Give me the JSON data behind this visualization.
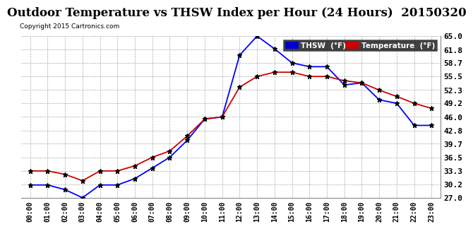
{
  "title": "Outdoor Temperature vs THSW Index per Hour (24 Hours)  20150320",
  "copyright": "Copyright 2015 Cartronics.com",
  "hours": [
    "00:00",
    "01:00",
    "02:00",
    "03:00",
    "04:00",
    "05:00",
    "06:00",
    "07:00",
    "08:00",
    "09:00",
    "10:00",
    "11:00",
    "12:00",
    "13:00",
    "14:00",
    "15:00",
    "16:00",
    "17:00",
    "18:00",
    "19:00",
    "20:00",
    "21:00",
    "22:00",
    "23:00"
  ],
  "thsw": [
    30.0,
    30.0,
    28.9,
    27.0,
    30.0,
    30.0,
    31.5,
    34.0,
    36.5,
    40.5,
    45.5,
    46.0,
    60.5,
    65.0,
    62.0,
    58.7,
    57.8,
    57.8,
    53.5,
    54.0,
    50.0,
    49.2,
    44.0,
    44.0
  ],
  "temperature": [
    33.3,
    33.3,
    32.5,
    31.0,
    33.3,
    33.3,
    34.5,
    36.5,
    38.0,
    41.5,
    45.5,
    46.0,
    53.0,
    55.5,
    56.5,
    56.5,
    55.5,
    55.5,
    54.5,
    54.0,
    52.3,
    50.8,
    49.2,
    48.0
  ],
  "ylim_min": 27.0,
  "ylim_max": 65.0,
  "yticks": [
    27.0,
    30.2,
    33.3,
    36.5,
    39.7,
    42.8,
    46.0,
    49.2,
    52.3,
    55.5,
    58.7,
    61.8,
    65.0
  ],
  "thsw_color": "#0000ff",
  "temp_color": "#cc0000",
  "bg_color": "#ffffff",
  "grid_color": "#aaaaaa",
  "title_fontsize": 12,
  "legend_thsw_bg": "#0000cc",
  "legend_temp_bg": "#cc0000",
  "legend_text_color": "#ffffff",
  "marker_color": "#000000",
  "marker_size": 5,
  "line_width": 1.3
}
